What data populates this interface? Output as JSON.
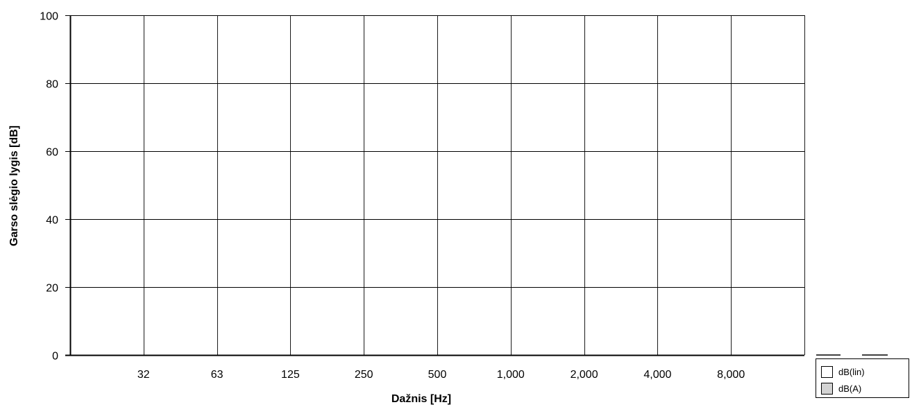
{
  "chart_data": {
    "type": "bar",
    "title": "",
    "xlabel": "Dažnis [Hz]",
    "ylabel": "Garso slėgio lygis [dB]",
    "categories": [
      "",
      "32",
      "63",
      "125",
      "250",
      "500",
      "1,000",
      "2,000",
      "4,000",
      "8,000"
    ],
    "ylim": [
      0,
      100
    ],
    "yticks": [
      "0",
      "20",
      "40",
      "60",
      "80",
      "100"
    ],
    "grid": true,
    "legend_position": "bottom-right",
    "series": [
      {
        "name": "dB(lin)",
        "color": "#ffffff",
        "values": [
          null,
          null,
          null,
          null,
          null,
          null,
          null,
          null,
          null,
          null
        ]
      },
      {
        "name": "dB(A)",
        "color": "#d3d3d3",
        "values": [
          null,
          null,
          null,
          null,
          null,
          null,
          null,
          null,
          null,
          null
        ]
      }
    ]
  }
}
